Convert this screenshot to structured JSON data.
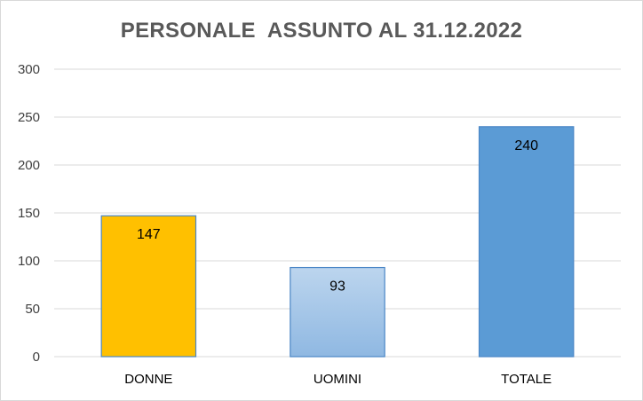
{
  "chart_data": {
    "type": "bar",
    "title": "PERSONALE  ASSUNTO AL 31.12.2022",
    "xlabel": "",
    "ylabel": "",
    "categories": [
      "DONNE",
      "UOMINI",
      "TOTALE"
    ],
    "values": [
      147,
      93,
      240
    ],
    "data_labels": [
      "147",
      "93",
      "240"
    ],
    "ylim": [
      0,
      300
    ],
    "yticks": [
      0,
      50,
      100,
      150,
      200,
      250,
      300
    ],
    "grid": true,
    "legend": "none",
    "bar_colors": [
      "#ffc000",
      "#9dc3e6",
      "#5b9bd5"
    ],
    "bar_edge_colors": [
      "#4a86c6",
      "#4a86c6",
      "#4a86c6"
    ],
    "gridline_color": "#d9d9d9"
  }
}
